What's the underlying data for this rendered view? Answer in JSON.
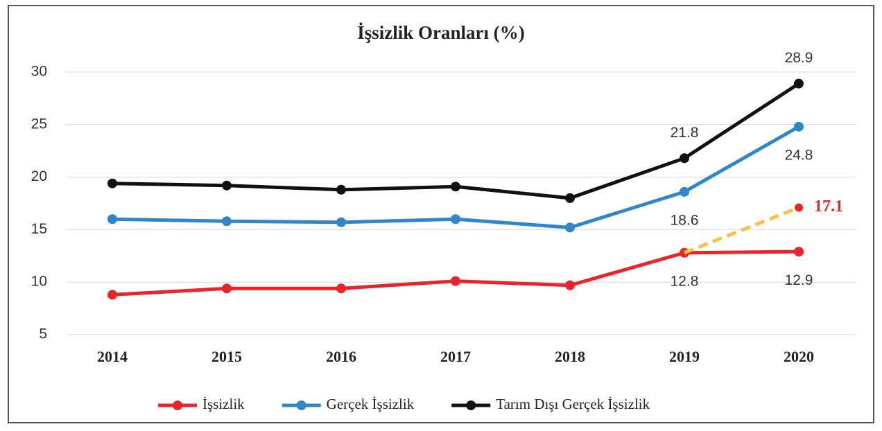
{
  "chart_data": {
    "type": "line",
    "title": "İşsizlik Oranları (%)",
    "categories": [
      "2014",
      "2015",
      "2016",
      "2017",
      "2018",
      "2019",
      "2020"
    ],
    "ylim": [
      5,
      30
    ],
    "yticks": [
      5,
      10,
      15,
      20,
      25,
      30
    ],
    "grid": true,
    "legend": "bottom",
    "series": [
      {
        "name": "İşsizlik",
        "color": "#e8262a",
        "values": [
          8.8,
          9.4,
          9.4,
          10.1,
          9.7,
          12.8,
          12.9
        ],
        "value_labels": [
          null,
          null,
          null,
          null,
          null,
          "12.8",
          "12.9"
        ],
        "label_position": "below"
      },
      {
        "name": "Gerçek İşsizlik",
        "color": "#2f86c8",
        "values": [
          16.0,
          15.8,
          15.7,
          16.0,
          15.2,
          18.6,
          24.8
        ],
        "value_labels": [
          null,
          null,
          null,
          null,
          null,
          "18.6",
          "24.8"
        ],
        "label_position": "below"
      },
      {
        "name": "Tarım Dışı Gerçek İşsizlik",
        "color": "#111111",
        "values": [
          19.4,
          19.2,
          18.8,
          19.1,
          18.0,
          21.8,
          28.9
        ],
        "value_labels": [
          null,
          null,
          null,
          null,
          null,
          "21.8",
          "28.9"
        ],
        "label_position": "above"
      },
      {
        "color": "#f5c242",
        "dashed": true,
        "label_color": "#e8262a",
        "values": [
          null,
          null,
          null,
          null,
          null,
          12.8,
          17.1
        ],
        "value_labels": [
          null,
          null,
          null,
          null,
          null,
          null,
          "17.1"
        ],
        "label_position": "right"
      }
    ]
  }
}
